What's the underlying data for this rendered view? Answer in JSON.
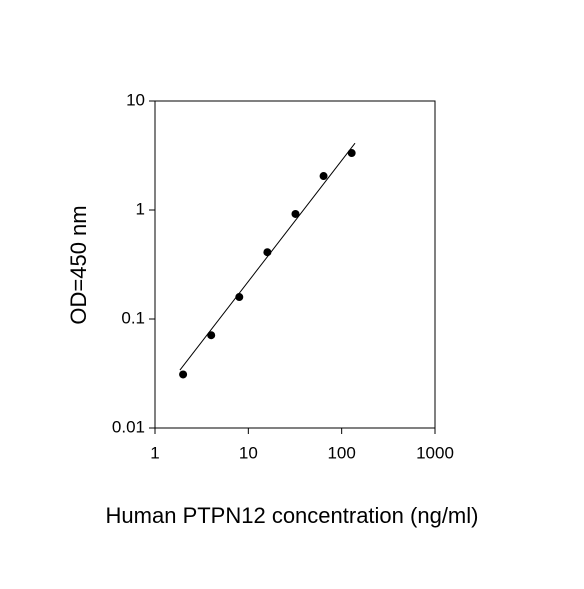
{
  "chart_data": {
    "type": "scatter",
    "xlabel": "Human PTPN12 concentration (ng/ml)",
    "ylabel": "OD=450 nm",
    "xscale": "log",
    "yscale": "log",
    "xlim": [
      1,
      1000
    ],
    "ylim": [
      0.01,
      10
    ],
    "xticks": [
      1,
      10,
      100,
      1000
    ],
    "yticks": [
      0.01,
      0.1,
      1,
      10
    ],
    "series": [
      {
        "color": "#000000",
        "x": [
          2,
          4,
          8,
          16,
          32,
          64,
          128
        ],
        "values": [
          0.031,
          0.071,
          0.159,
          0.41,
          0.92,
          2.05,
          3.33
        ]
      },
      {
        "color": "#000000",
        "style": "line",
        "x": [
          1.85,
          139
        ],
        "values": [
          0.034,
          4.1
        ]
      }
    ]
  }
}
